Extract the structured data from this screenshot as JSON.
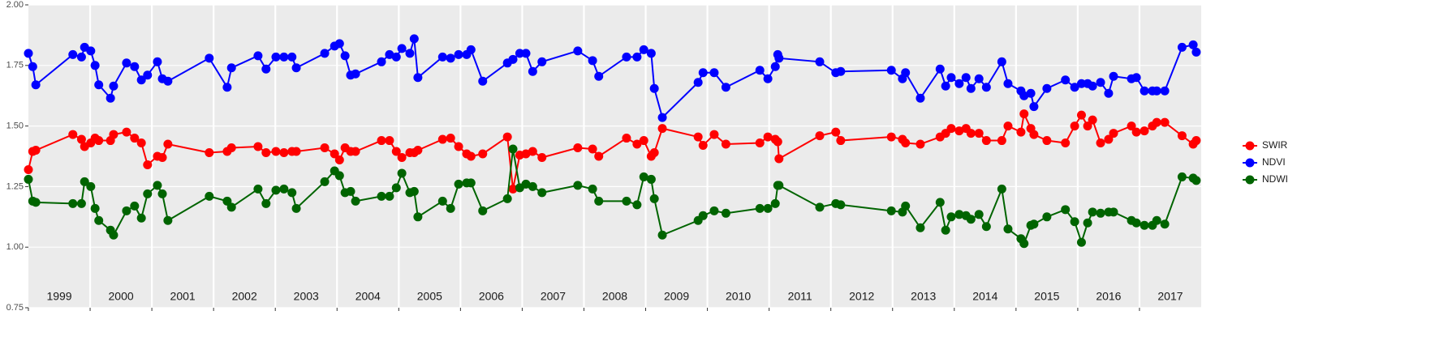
{
  "chart_data": {
    "type": "line",
    "x": [
      1999.0,
      1999.07,
      1999.12,
      1999.72,
      1999.86,
      1999.91,
      2000.01,
      2000.08,
      2000.14,
      2000.33,
      2000.38,
      2000.59,
      2000.72,
      2000.83,
      2000.93,
      2001.09,
      2001.17,
      2001.26,
      2001.93,
      2002.22,
      2002.29,
      2002.72,
      2002.85,
      2003.01,
      2003.14,
      2003.27,
      2003.34,
      2003.8,
      2003.96,
      2004.04,
      2004.13,
      2004.22,
      2004.3,
      2004.72,
      2004.85,
      2004.96,
      2005.05,
      2005.18,
      2005.25,
      2005.31,
      2005.71,
      2005.84,
      2005.97,
      2006.1,
      2006.17,
      2006.36,
      2006.76,
      2006.85,
      2006.96,
      2007.06,
      2007.17,
      2007.32,
      2007.9,
      2008.14,
      2008.24,
      2008.69,
      2008.86,
      2008.97,
      2009.09,
      2009.14,
      2009.27,
      2009.85,
      2009.93,
      2010.11,
      2010.3,
      2010.85,
      2010.98,
      2011.1,
      2011.14,
      2011.16,
      2011.82,
      2012.08,
      2012.16,
      2012.98,
      2013.16,
      2013.21,
      2013.45,
      2013.77,
      2013.86,
      2013.95,
      2014.08,
      2014.19,
      2014.27,
      2014.4,
      2014.52,
      2014.77,
      2014.87,
      2015.08,
      2015.13,
      2015.24,
      2015.29,
      2015.5,
      2015.8,
      2015.95,
      2016.06,
      2016.16,
      2016.24,
      2016.37,
      2016.5,
      2016.58,
      2016.87,
      2016.95,
      2017.08,
      2017.21,
      2017.28,
      2017.41,
      2017.69,
      2017.87,
      2017.92
    ],
    "series": [
      {
        "name": "SWIR",
        "color": "#ff0000",
        "values": [
          1.32,
          1.395,
          1.4,
          1.465,
          1.445,
          1.415,
          1.43,
          1.45,
          1.44,
          1.44,
          1.465,
          1.475,
          1.45,
          1.43,
          1.34,
          1.375,
          1.37,
          1.425,
          1.39,
          1.395,
          1.41,
          1.415,
          1.39,
          1.395,
          1.39,
          1.395,
          1.395,
          1.41,
          1.385,
          1.36,
          1.41,
          1.395,
          1.395,
          1.44,
          1.44,
          1.395,
          1.37,
          1.39,
          1.39,
          1.4,
          1.445,
          1.45,
          1.415,
          1.385,
          1.375,
          1.385,
          1.455,
          1.24,
          1.38,
          1.385,
          1.395,
          1.37,
          1.41,
          1.405,
          1.375,
          1.45,
          1.425,
          1.44,
          1.375,
          1.39,
          1.49,
          1.455,
          1.42,
          1.465,
          1.425,
          1.43,
          1.455,
          1.445,
          1.435,
          1.365,
          1.46,
          1.475,
          1.44,
          1.455,
          1.445,
          1.43,
          1.425,
          1.455,
          1.47,
          1.49,
          1.48,
          1.49,
          1.47,
          1.47,
          1.44,
          1.44,
          1.5,
          1.475,
          1.55,
          1.49,
          1.465,
          1.44,
          1.43,
          1.5,
          1.545,
          1.5,
          1.525,
          1.43,
          1.445,
          1.47,
          1.5,
          1.475,
          1.48,
          1.5,
          1.515,
          1.515,
          1.46,
          1.425,
          1.44
        ]
      },
      {
        "name": "NDVI",
        "color": "#0000ff",
        "values": [
          1.8,
          1.745,
          1.67,
          1.795,
          1.785,
          1.825,
          1.81,
          1.75,
          1.67,
          1.615,
          1.665,
          1.76,
          1.745,
          1.69,
          1.71,
          1.765,
          1.695,
          1.685,
          1.78,
          1.66,
          1.74,
          1.79,
          1.735,
          1.785,
          1.785,
          1.785,
          1.74,
          1.8,
          1.83,
          1.84,
          1.79,
          1.71,
          1.715,
          1.765,
          1.795,
          1.785,
          1.82,
          1.8,
          1.86,
          1.7,
          1.785,
          1.78,
          1.795,
          1.795,
          1.815,
          1.685,
          1.76,
          1.775,
          1.8,
          1.8,
          1.725,
          1.765,
          1.81,
          1.77,
          1.705,
          1.785,
          1.785,
          1.815,
          1.8,
          1.655,
          1.535,
          1.68,
          1.72,
          1.72,
          1.66,
          1.73,
          1.695,
          1.745,
          1.795,
          1.78,
          1.765,
          1.72,
          1.725,
          1.73,
          1.695,
          1.72,
          1.615,
          1.735,
          1.665,
          1.7,
          1.675,
          1.7,
          1.655,
          1.695,
          1.66,
          1.765,
          1.675,
          1.645,
          1.625,
          1.635,
          1.58,
          1.655,
          1.69,
          1.66,
          1.675,
          1.675,
          1.665,
          1.68,
          1.635,
          1.705,
          1.695,
          1.7,
          1.645,
          1.645,
          1.645,
          1.645,
          1.825,
          1.835,
          1.805
        ]
      },
      {
        "name": "NDWI",
        "color": "#006400",
        "values": [
          1.28,
          1.19,
          1.185,
          1.18,
          1.18,
          1.27,
          1.25,
          1.16,
          1.11,
          1.07,
          1.05,
          1.15,
          1.17,
          1.12,
          1.22,
          1.255,
          1.22,
          1.11,
          1.21,
          1.19,
          1.165,
          1.24,
          1.18,
          1.235,
          1.24,
          1.225,
          1.16,
          1.27,
          1.315,
          1.295,
          1.225,
          1.23,
          1.19,
          1.21,
          1.21,
          1.245,
          1.305,
          1.225,
          1.23,
          1.125,
          1.19,
          1.16,
          1.26,
          1.265,
          1.265,
          1.15,
          1.2,
          1.405,
          1.245,
          1.26,
          1.25,
          1.225,
          1.255,
          1.24,
          1.19,
          1.19,
          1.175,
          1.29,
          1.28,
          1.2,
          1.05,
          1.11,
          1.13,
          1.15,
          1.14,
          1.16,
          1.16,
          1.18,
          1.255,
          1.255,
          1.165,
          1.18,
          1.175,
          1.15,
          1.145,
          1.17,
          1.08,
          1.185,
          1.07,
          1.125,
          1.135,
          1.13,
          1.115,
          1.135,
          1.085,
          1.24,
          1.075,
          1.035,
          1.015,
          1.09,
          1.095,
          1.125,
          1.155,
          1.105,
          1.02,
          1.1,
          1.145,
          1.14,
          1.145,
          1.145,
          1.11,
          1.1,
          1.09,
          1.09,
          1.11,
          1.095,
          1.29,
          1.285,
          1.275
        ]
      }
    ],
    "xlim": [
      1999,
      2018
    ],
    "xticks": [
      1999,
      2000,
      2001,
      2002,
      2003,
      2004,
      2005,
      2006,
      2007,
      2008,
      2009,
      2010,
      2011,
      2012,
      2013,
      2014,
      2015,
      2016,
      2017
    ],
    "ylim": [
      0.75,
      2.0
    ],
    "yticks": [
      {
        "value": 0.75,
        "label": "0.75"
      },
      {
        "value": 1.0,
        "label": "1.00"
      },
      {
        "value": 1.25,
        "label": "1.25"
      },
      {
        "value": 1.5,
        "label": "1.50"
      },
      {
        "value": 1.75,
        "label": "1.75"
      },
      {
        "value": 2.0,
        "label": "2.00"
      }
    ],
    "grid": true,
    "legend": "right"
  }
}
